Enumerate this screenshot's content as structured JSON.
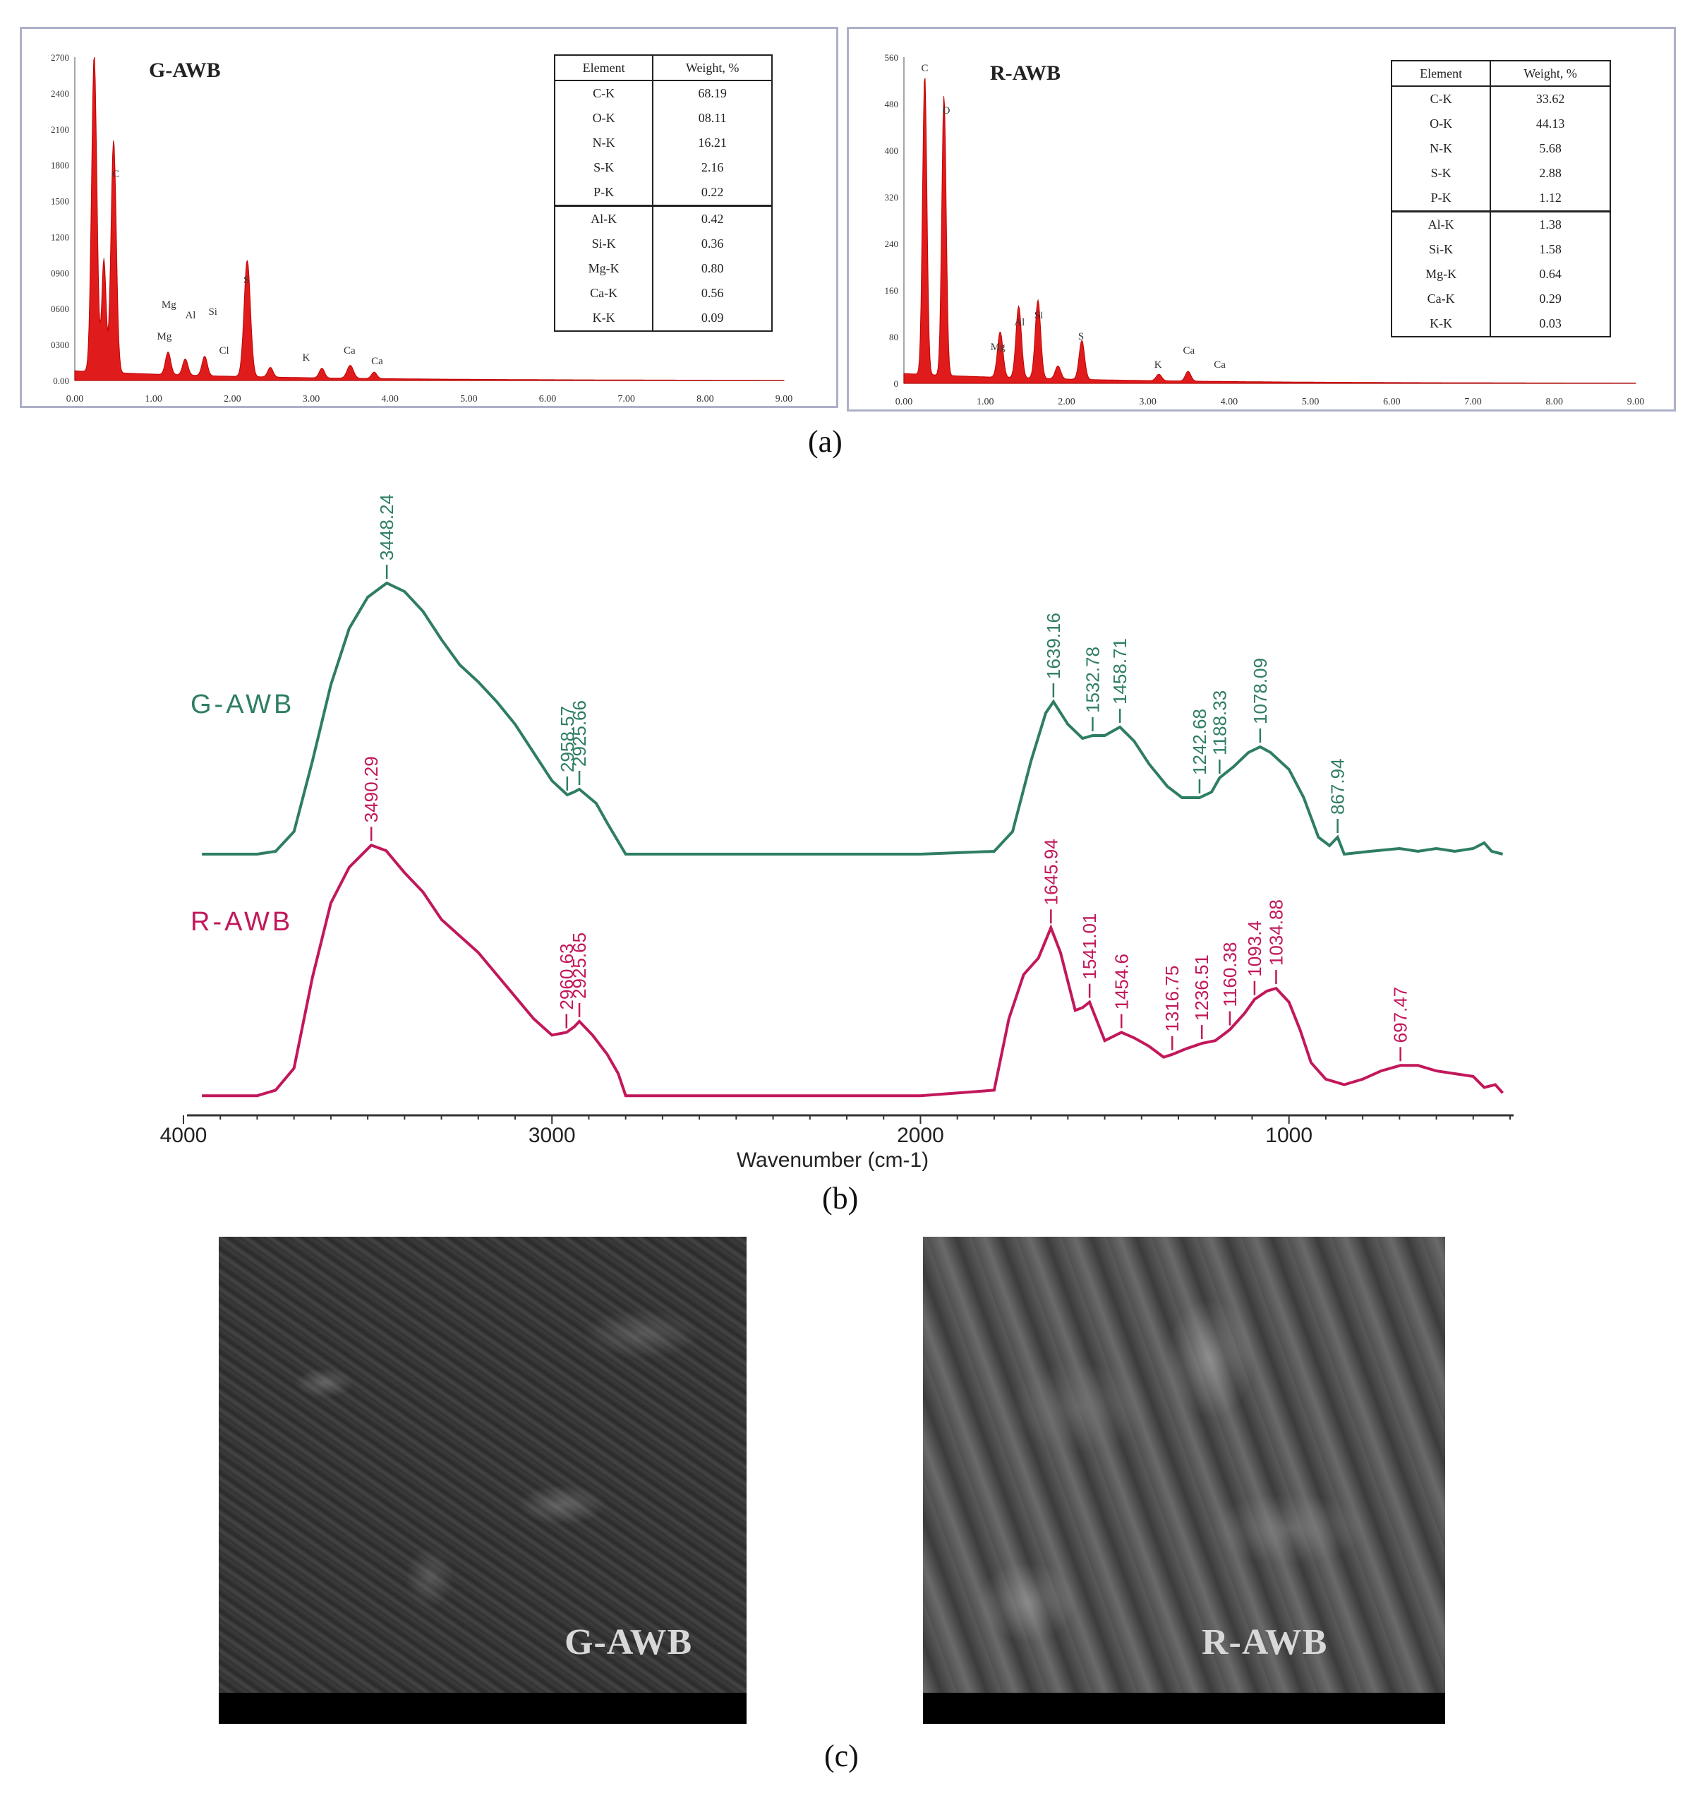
{
  "panels": {
    "a": {
      "label": "(a)",
      "left": {
        "title": "G-AWB",
        "table": {
          "headers": [
            "Element",
            "Weight, %"
          ],
          "rows": [
            [
              "C-K",
              "68.19"
            ],
            [
              "O-K",
              "08.11"
            ],
            [
              "N-K",
              "16.21"
            ],
            [
              "S-K",
              "2.16"
            ],
            [
              "P-K",
              "0.22"
            ],
            [
              "Al-K",
              "0.42"
            ],
            [
              "Si-K",
              "0.36"
            ],
            [
              "Mg-K",
              "0.80"
            ],
            [
              "Ca-K",
              "0.56"
            ],
            [
              "K-K",
              "0.09"
            ]
          ]
        },
        "x_ticks": [
          "0.00",
          "1.00",
          "2.00",
          "3.00",
          "4.00",
          "5.00",
          "6.00",
          "7.00",
          "8.00",
          "9.00"
        ],
        "y_ticks": [
          "2700",
          "2400",
          "2100",
          "1800",
          "1500",
          "1200",
          "0900",
          "0600",
          "0300",
          "0.00"
        ],
        "peak_labels": [
          "C",
          "Mg",
          "Al",
          "Si",
          "Mg",
          "Cl",
          "S",
          "K",
          "Ca",
          "Ca"
        ]
      },
      "right": {
        "title": "R-AWB",
        "table": {
          "headers": [
            "Element",
            "Weight, %"
          ],
          "rows": [
            [
              "C-K",
              "33.62"
            ],
            [
              "O-K",
              "44.13"
            ],
            [
              "N-K",
              "5.68"
            ],
            [
              "S-K",
              "2.88"
            ],
            [
              "P-K",
              "1.12"
            ],
            [
              "Al-K",
              "1.38"
            ],
            [
              "Si-K",
              "1.58"
            ],
            [
              "Mg-K",
              "0.64"
            ],
            [
              "Ca-K",
              "0.29"
            ],
            [
              "K-K",
              "0.03"
            ]
          ]
        },
        "x_ticks": [
          "0.00",
          "1.00",
          "2.00",
          "3.00",
          "4.00",
          "5.00",
          "6.00",
          "7.00",
          "8.00",
          "9.00"
        ],
        "y_ticks": [
          "560",
          "480",
          "400",
          "320",
          "240",
          "160",
          "80",
          "0"
        ],
        "peak_labels": [
          "C",
          "O",
          "Mg",
          "Al",
          "Si",
          "S",
          "K",
          "Ca",
          "Ca"
        ]
      }
    },
    "b": {
      "label": "(b)",
      "chart_data": {
        "type": "line",
        "xlabel": "Wavenumber (cm-1)",
        "ylabel": "",
        "x_ticks": [
          4000,
          3000,
          2000,
          1000
        ],
        "xlim": [
          4000,
          400
        ],
        "series": [
          {
            "name": "G-AWB",
            "color": "#2e7d64",
            "points": [
              [
                3950,
                0.02
              ],
              [
                3800,
                0.02
              ],
              [
                3750,
                0.03
              ],
              [
                3700,
                0.1
              ],
              [
                3650,
                0.35
              ],
              [
                3600,
                0.62
              ],
              [
                3550,
                0.82
              ],
              [
                3500,
                0.93
              ],
              [
                3448.24,
                0.98
              ],
              [
                3400,
                0.95
              ],
              [
                3350,
                0.88
              ],
              [
                3300,
                0.78
              ],
              [
                3250,
                0.69
              ],
              [
                3200,
                0.63
              ],
              [
                3150,
                0.56
              ],
              [
                3100,
                0.48
              ],
              [
                3050,
                0.38
              ],
              [
                3000,
                0.28
              ],
              [
                2958.57,
                0.23
              ],
              [
                2940,
                0.24
              ],
              [
                2925.66,
                0.25
              ],
              [
                2880,
                0.2
              ],
              [
                2850,
                0.13
              ],
              [
                2800,
                0.02
              ],
              [
                2000,
                0.02
              ],
              [
                1800,
                0.03
              ],
              [
                1750,
                0.1
              ],
              [
                1700,
                0.35
              ],
              [
                1660,
                0.52
              ],
              [
                1639.16,
                0.56
              ],
              [
                1600,
                0.48
              ],
              [
                1560,
                0.43
              ],
              [
                1532.78,
                0.44
              ],
              [
                1500,
                0.44
              ],
              [
                1458.71,
                0.47
              ],
              [
                1420,
                0.42
              ],
              [
                1380,
                0.34
              ],
              [
                1330,
                0.26
              ],
              [
                1290,
                0.22
              ],
              [
                1242.68,
                0.22
              ],
              [
                1210,
                0.24
              ],
              [
                1188.33,
                0.29
              ],
              [
                1150,
                0.33
              ],
              [
                1110,
                0.38
              ],
              [
                1078.09,
                0.4
              ],
              [
                1050,
                0.38
              ],
              [
                1000,
                0.32
              ],
              [
                960,
                0.22
              ],
              [
                920,
                0.08
              ],
              [
                890,
                0.05
              ],
              [
                867.94,
                0.08
              ],
              [
                850,
                0.02
              ],
              [
                780,
                0.03
              ],
              [
                700,
                0.04
              ],
              [
                650,
                0.03
              ],
              [
                600,
                0.04
              ],
              [
                550,
                0.03
              ],
              [
                500,
                0.04
              ],
              [
                470,
                0.06
              ],
              [
                450,
                0.03
              ],
              [
                420,
                0.02
              ]
            ],
            "peaks": [
              [
                "3448.24",
                3448.24,
                0.98
              ],
              [
                "2958.57",
                2958.57,
                0.23
              ],
              [
                "2925.66",
                2925.66,
                0.25
              ],
              [
                "1639.16",
                1639.16,
                0.56
              ],
              [
                "1532.78",
                1532.78,
                0.44
              ],
              [
                "1458.71",
                1458.71,
                0.47
              ],
              [
                "1242.68",
                1242.68,
                0.22
              ],
              [
                "1188.33",
                1188.33,
                0.29
              ],
              [
                "1078.09",
                1078.09,
                0.4
              ],
              [
                "867.94",
                867.94,
                0.08
              ]
            ]
          },
          {
            "name": "R-AWB",
            "color": "#c2185b",
            "points": [
              [
                3950,
                0.02
              ],
              [
                3800,
                0.02
              ],
              [
                3750,
                0.04
              ],
              [
                3700,
                0.12
              ],
              [
                3650,
                0.45
              ],
              [
                3600,
                0.72
              ],
              [
                3550,
                0.85
              ],
              [
                3490.29,
                0.93
              ],
              [
                3450,
                0.91
              ],
              [
                3400,
                0.83
              ],
              [
                3350,
                0.76
              ],
              [
                3300,
                0.66
              ],
              [
                3250,
                0.6
              ],
              [
                3200,
                0.54
              ],
              [
                3150,
                0.46
              ],
              [
                3100,
                0.38
              ],
              [
                3050,
                0.3
              ],
              [
                3000,
                0.24
              ],
              [
                2960.63,
                0.25
              ],
              [
                2940,
                0.27
              ],
              [
                2925.65,
                0.29
              ],
              [
                2890,
                0.24
              ],
              [
                2850,
                0.17
              ],
              [
                2820,
                0.1
              ],
              [
                2800,
                0.02
              ],
              [
                2000,
                0.02
              ],
              [
                1800,
                0.04
              ],
              [
                1760,
                0.3
              ],
              [
                1720,
                0.46
              ],
              [
                1680,
                0.52
              ],
              [
                1645.94,
                0.63
              ],
              [
                1620,
                0.54
              ],
              [
                1580,
                0.33
              ],
              [
                1560,
                0.34
              ],
              [
                1541.01,
                0.36
              ],
              [
                1500,
                0.22
              ],
              [
                1470,
                0.24
              ],
              [
                1454.6,
                0.25
              ],
              [
                1420,
                0.23
              ],
              [
                1380,
                0.2
              ],
              [
                1340,
                0.16
              ],
              [
                1316.75,
                0.17
              ],
              [
                1280,
                0.19
              ],
              [
                1236.51,
                0.21
              ],
              [
                1200,
                0.22
              ],
              [
                1180,
                0.24
              ],
              [
                1160.38,
                0.26
              ],
              [
                1120,
                0.32
              ],
              [
                1093.4,
                0.37
              ],
              [
                1060,
                0.4
              ],
              [
                1034.88,
                0.41
              ],
              [
                1000,
                0.36
              ],
              [
                970,
                0.26
              ],
              [
                940,
                0.14
              ],
              [
                900,
                0.08
              ],
              [
                850,
                0.06
              ],
              [
                800,
                0.08
              ],
              [
                750,
                0.11
              ],
              [
                697.47,
                0.13
              ],
              [
                650,
                0.13
              ],
              [
                600,
                0.11
              ],
              [
                550,
                0.1
              ],
              [
                500,
                0.09
              ],
              [
                470,
                0.05
              ],
              [
                440,
                0.06
              ],
              [
                420,
                0.03
              ]
            ],
            "peaks": [
              [
                "3490.29",
                3490.29,
                0.93
              ],
              [
                "2960.63",
                2960.63,
                0.25
              ],
              [
                "2925.65",
                2925.65,
                0.29
              ],
              [
                "1645.94",
                1645.94,
                0.63
              ],
              [
                "1541.01",
                1541.01,
                0.36
              ],
              [
                "1454.6",
                1454.6,
                0.25
              ],
              [
                "1316.75",
                1316.75,
                0.17
              ],
              [
                "1236.51",
                1236.51,
                0.21
              ],
              [
                "1160.38",
                1160.38,
                0.26
              ],
              [
                "1093.4",
                1093.4,
                0.37
              ],
              [
                "1034.88",
                1034.88,
                0.41
              ],
              [
                "697.47",
                697.47,
                0.13
              ]
            ]
          }
        ]
      }
    },
    "c": {
      "label": "(c)",
      "left_label": "G-AWB",
      "right_label": "R-AWB"
    }
  }
}
